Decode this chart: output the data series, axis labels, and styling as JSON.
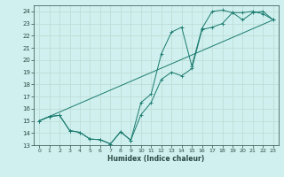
{
  "bg_color": "#cff0ee",
  "grid_color": "#c0ddd8",
  "line_color": "#1a7a6e",
  "xlabel": "Humidex (Indice chaleur)",
  "xlim": [
    -0.5,
    23.5
  ],
  "ylim": [
    13,
    24.5
  ],
  "yticks": [
    13,
    14,
    15,
    16,
    17,
    18,
    19,
    20,
    21,
    22,
    23,
    24
  ],
  "xticks": [
    0,
    1,
    2,
    3,
    4,
    5,
    6,
    7,
    8,
    9,
    10,
    11,
    12,
    13,
    14,
    15,
    16,
    17,
    18,
    19,
    20,
    21,
    22,
    23
  ],
  "line1_x": [
    0,
    1,
    2,
    3,
    4,
    5,
    6,
    7,
    8,
    9,
    10,
    11,
    12,
    13,
    14,
    15,
    16,
    17,
    18,
    19,
    20,
    21,
    22,
    23
  ],
  "line1_y": [
    15.0,
    15.35,
    15.45,
    14.2,
    14.05,
    13.5,
    13.45,
    13.1,
    14.1,
    13.4,
    15.5,
    16.5,
    18.4,
    19.0,
    18.7,
    19.3,
    22.5,
    22.7,
    23.0,
    23.9,
    23.9,
    24.0,
    23.8,
    23.3
  ],
  "line2_x": [
    0,
    1,
    2,
    3,
    4,
    5,
    6,
    7,
    8,
    9,
    10,
    11,
    12,
    13,
    14,
    15,
    16,
    17,
    18,
    19,
    20,
    21,
    22,
    23
  ],
  "line2_y": [
    15.0,
    15.35,
    15.45,
    14.2,
    14.05,
    13.5,
    13.45,
    13.1,
    14.1,
    13.4,
    16.5,
    17.2,
    20.5,
    22.3,
    22.7,
    19.5,
    22.6,
    24.0,
    24.1,
    23.9,
    23.3,
    23.9,
    24.0,
    23.3
  ],
  "line3_x": [
    0,
    23
  ],
  "line3_y": [
    15.0,
    23.3
  ]
}
